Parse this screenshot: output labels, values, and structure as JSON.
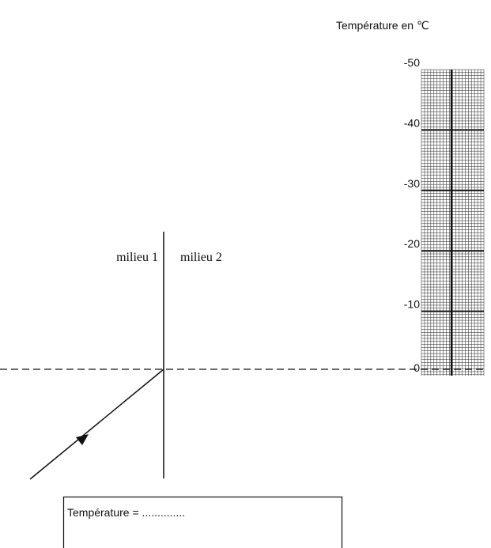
{
  "title": "Température en ℃",
  "scale": {
    "labels": [
      "-50",
      "-40",
      "-30",
      "-20",
      "-10",
      "0"
    ]
  },
  "diagram": {
    "medium1": "milieu 1",
    "medium2": "milieu 2"
  },
  "answer_box": {
    "text": "Température = .............."
  }
}
